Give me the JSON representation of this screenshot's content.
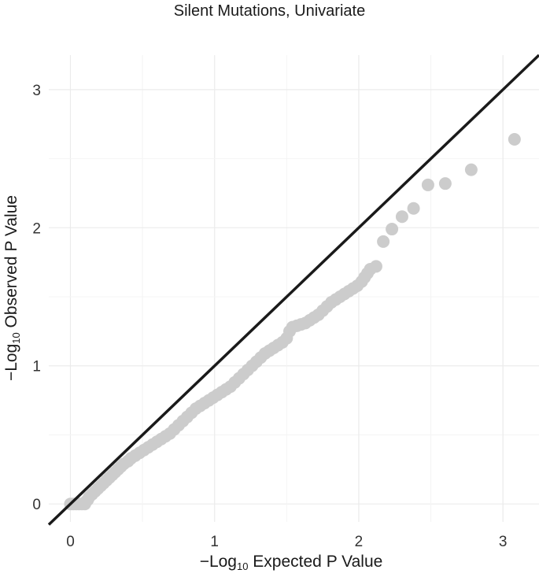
{
  "chart_data": {
    "type": "scatter",
    "title": "Silent Mutations, Univariate",
    "xlabel": {
      "prefix": "−Log",
      "sub": "10",
      "suffix": " Expected P Value"
    },
    "ylabel": {
      "prefix": "−Log",
      "sub": "10",
      "suffix": " Observed P Value"
    },
    "xlim": [
      -0.15,
      3.25
    ],
    "ylim": [
      -0.13,
      3.25
    ],
    "xticks": [
      0,
      1,
      2,
      3
    ],
    "yticks": [
      0,
      1,
      2,
      3
    ],
    "grid": true,
    "reference_line": {
      "slope": 1,
      "intercept": 0,
      "color": "#1a1a1a"
    },
    "point_color": "#cccccc",
    "series": [
      {
        "values": [
          [
            0.0,
            0.0
          ],
          [
            0.02,
            0.0
          ],
          [
            0.04,
            0.0
          ],
          [
            0.06,
            0.0
          ],
          [
            0.08,
            0.0
          ],
          [
            0.1,
            0.0
          ],
          [
            0.11,
            0.02
          ],
          [
            0.12,
            0.03
          ],
          [
            0.13,
            0.05
          ],
          [
            0.15,
            0.07
          ],
          [
            0.17,
            0.09
          ],
          [
            0.19,
            0.11
          ],
          [
            0.21,
            0.13
          ],
          [
            0.23,
            0.15
          ],
          [
            0.25,
            0.17
          ],
          [
            0.27,
            0.19
          ],
          [
            0.29,
            0.21
          ],
          [
            0.31,
            0.23
          ],
          [
            0.33,
            0.25
          ],
          [
            0.35,
            0.27
          ],
          [
            0.37,
            0.29
          ],
          [
            0.4,
            0.31
          ],
          [
            0.42,
            0.33
          ],
          [
            0.45,
            0.35
          ],
          [
            0.48,
            0.37
          ],
          [
            0.51,
            0.39
          ],
          [
            0.54,
            0.41
          ],
          [
            0.57,
            0.43
          ],
          [
            0.6,
            0.45
          ],
          [
            0.63,
            0.47
          ],
          [
            0.66,
            0.49
          ],
          [
            0.69,
            0.51
          ],
          [
            0.72,
            0.54
          ],
          [
            0.75,
            0.57
          ],
          [
            0.78,
            0.6
          ],
          [
            0.81,
            0.63
          ],
          [
            0.84,
            0.66
          ],
          [
            0.87,
            0.69
          ],
          [
            0.9,
            0.71
          ],
          [
            0.93,
            0.73
          ],
          [
            0.96,
            0.75
          ],
          [
            0.99,
            0.77
          ],
          [
            1.02,
            0.79
          ],
          [
            1.05,
            0.81
          ],
          [
            1.08,
            0.83
          ],
          [
            1.11,
            0.85
          ],
          [
            1.14,
            0.88
          ],
          [
            1.17,
            0.91
          ],
          [
            1.2,
            0.94
          ],
          [
            1.23,
            0.97
          ],
          [
            1.26,
            1.0
          ],
          [
            1.29,
            1.03
          ],
          [
            1.32,
            1.06
          ],
          [
            1.35,
            1.09
          ],
          [
            1.38,
            1.11
          ],
          [
            1.41,
            1.13
          ],
          [
            1.44,
            1.15
          ],
          [
            1.47,
            1.17
          ],
          [
            1.5,
            1.2
          ],
          [
            1.52,
            1.25
          ],
          [
            1.54,
            1.28
          ],
          [
            1.57,
            1.29
          ],
          [
            1.6,
            1.3
          ],
          [
            1.63,
            1.31
          ],
          [
            1.66,
            1.33
          ],
          [
            1.69,
            1.35
          ],
          [
            1.72,
            1.37
          ],
          [
            1.75,
            1.4
          ],
          [
            1.78,
            1.43
          ],
          [
            1.81,
            1.46
          ],
          [
            1.84,
            1.48
          ],
          [
            1.87,
            1.5
          ],
          [
            1.9,
            1.52
          ],
          [
            1.93,
            1.54
          ],
          [
            1.96,
            1.56
          ],
          [
            1.99,
            1.58
          ],
          [
            2.02,
            1.61
          ],
          [
            2.04,
            1.64
          ],
          [
            2.06,
            1.67
          ],
          [
            2.08,
            1.7
          ],
          [
            2.12,
            1.72
          ],
          [
            2.17,
            1.9
          ],
          [
            2.23,
            1.99
          ],
          [
            2.3,
            2.08
          ],
          [
            2.38,
            2.14
          ],
          [
            2.48,
            2.31
          ],
          [
            2.6,
            2.32
          ],
          [
            2.78,
            2.42
          ],
          [
            3.08,
            2.64
          ]
        ]
      }
    ]
  }
}
